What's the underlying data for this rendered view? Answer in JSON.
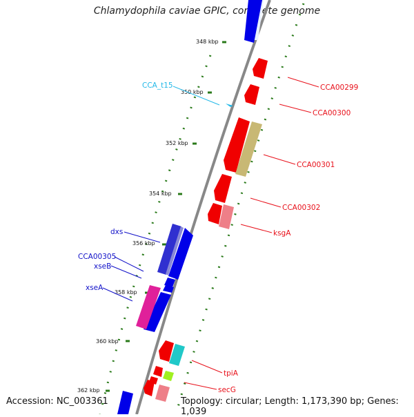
{
  "title": "Chlamydophila caviae GPIC, complete genome",
  "accession": "Accession: NC_003361",
  "topology": "Topology: circular; Length: 1,173,390 bp; Genes: 1,039",
  "ticks": [
    "348 kbp",
    "350 kbp",
    "352 kbp",
    "354 kbp",
    "356 kbp",
    "358 kbp",
    "360 kbp",
    "362 kbp"
  ],
  "labels": {
    "cca_t15": "CCA_t15",
    "cca00299": "CCA00299",
    "cca00300": "CCA00300",
    "cca00301": "CCA00301",
    "cca00302": "CCA00302",
    "ksga": "ksgA",
    "dxs": "dxs",
    "cca00305": "CCA00305",
    "xseb": "xseB",
    "xsea": "xseA",
    "tpia": "tpiA",
    "secg": "secG"
  },
  "colors": {
    "forward_label": "#e8101a",
    "reverse_label": "#1010c8",
    "trna_label": "#22b8e8",
    "gc_skew_dots": "#2a7a1a"
  }
}
